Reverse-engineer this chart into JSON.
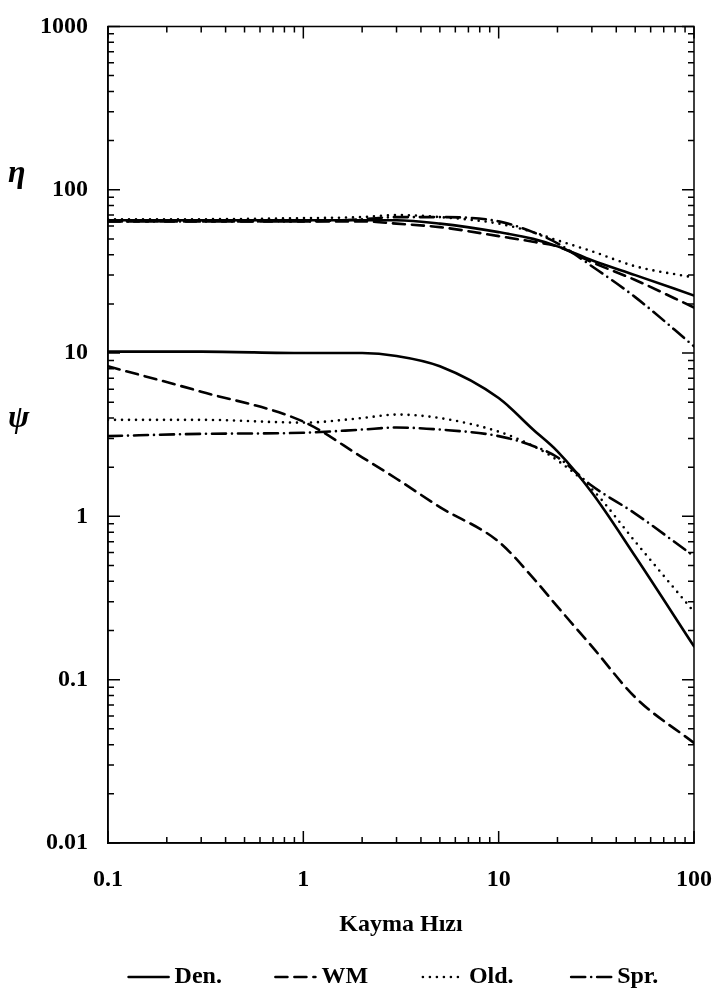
{
  "chart_data": {
    "type": "line",
    "xlabel": "Kayma Hızı",
    "log": "xy",
    "xlim": [
      0.1,
      100
    ],
    "ylim": [
      0.01,
      1000
    ],
    "xticks": [
      0.1,
      {
        "value": 0.2,
        "label": null
      },
      {
        "value": 0.3,
        "label": null
      },
      {
        "value": 0.4,
        "label": null
      },
      {
        "value": 0.5,
        "label": null
      },
      {
        "value": 0.6,
        "label": null
      },
      {
        "value": 0.7,
        "label": null
      },
      {
        "value": 0.8,
        "label": null
      },
      {
        "value": 0.9,
        "label": null
      },
      1,
      {
        "value": 2,
        "label": null
      },
      {
        "value": 3,
        "label": null
      },
      {
        "value": 4,
        "label": null
      },
      {
        "value": 5,
        "label": null
      },
      {
        "value": 6,
        "label": null
      },
      {
        "value": 7,
        "label": null
      },
      {
        "value": 8,
        "label": null
      },
      {
        "value": 9,
        "label": null
      },
      10,
      {
        "value": 20,
        "label": null
      },
      {
        "value": 30,
        "label": null
      },
      {
        "value": 40,
        "label": null
      },
      {
        "value": 50,
        "label": null
      },
      {
        "value": 60,
        "label": null
      },
      {
        "value": 70,
        "label": null
      },
      {
        "value": 80,
        "label": null
      },
      {
        "value": 90,
        "label": null
      },
      100
    ],
    "yticks": [
      0.01,
      {
        "value": 0.02,
        "label": null
      },
      {
        "value": 0.03,
        "label": null
      },
      {
        "value": 0.04,
        "label": null
      },
      {
        "value": 0.05,
        "label": null
      },
      {
        "value": 0.06,
        "label": null
      },
      {
        "value": 0.07,
        "label": null
      },
      {
        "value": 0.08,
        "label": null
      },
      {
        "value": 0.09,
        "label": null
      },
      0.1,
      {
        "value": 0.2,
        "label": null
      },
      {
        "value": 0.3,
        "label": null
      },
      {
        "value": 0.4,
        "label": null
      },
      {
        "value": 0.5,
        "label": null
      },
      {
        "value": 0.6,
        "label": null
      },
      {
        "value": 0.7,
        "label": null
      },
      {
        "value": 0.8,
        "label": null
      },
      {
        "value": 0.9,
        "label": null
      },
      1,
      {
        "value": 2,
        "label": null
      },
      {
        "value": 3,
        "label": null
      },
      {
        "value": 4,
        "label": null
      },
      {
        "value": 5,
        "label": null
      },
      {
        "value": 6,
        "label": null
      },
      {
        "value": 7,
        "label": null
      },
      {
        "value": 8,
        "label": null
      },
      {
        "value": 9,
        "label": null
      },
      10,
      {
        "value": 20,
        "label": null
      },
      {
        "value": 30,
        "label": null
      },
      {
        "value": 40,
        "label": null
      },
      {
        "value": 50,
        "label": null
      },
      {
        "value": 60,
        "label": null
      },
      {
        "value": 70,
        "label": null
      },
      {
        "value": 80,
        "label": null
      },
      {
        "value": 90,
        "label": null
      },
      100,
      {
        "value": 200,
        "label": null
      },
      {
        "value": 300,
        "label": null
      },
      {
        "value": 400,
        "label": null
      },
      {
        "value": 500,
        "label": null
      },
      {
        "value": 600,
        "label": null
      },
      {
        "value": 700,
        "label": null
      },
      {
        "value": 800,
        "label": null
      },
      {
        "value": 900,
        "label": null
      },
      1000
    ],
    "x": [
      0.1,
      0.3,
      1,
      2,
      3,
      5,
      10,
      15,
      20,
      30,
      50,
      100
    ],
    "legend": "bottom",
    "series": [
      {
        "name": "Den.",
        "color": "#000000",
        "line_style": "solid",
        "values": [
          65,
          65,
          65,
          65,
          65,
          62,
          55,
          50,
          45,
          37,
          30,
          22.5
        ]
      },
      {
        "name": "WM",
        "color": "#000000",
        "line_style": "dashed",
        "values": [
          64,
          64,
          64,
          64,
          62,
          59,
          52,
          48,
          45,
          36,
          28,
          19
        ]
      },
      {
        "name": "Old.",
        "color": "#000000",
        "line_style": "dotted",
        "values": [
          66,
          66,
          67,
          68,
          70,
          68,
          62,
          55,
          49,
          42,
          34,
          29
        ]
      },
      {
        "name": "Spr.",
        "color": "#000000",
        "line_style": "dashdot",
        "values": [
          64,
          64,
          64,
          66,
          68,
          68,
          64,
          55,
          47,
          34,
          22,
          11
        ]
      },
      {
        "color": "#000000",
        "line_style": "solid",
        "values": [
          10.2,
          10.2,
          10,
          10,
          9.6,
          8.3,
          5.3,
          3.4,
          2.5,
          1.4,
          0.57,
          0.16
        ]
      },
      {
        "color": "#000000",
        "line_style": "dashed",
        "values": [
          8.3,
          5.8,
          3.8,
          2.3,
          1.7,
          1.14,
          0.7,
          0.42,
          0.28,
          0.16,
          0.078,
          0.041
        ]
      },
      {
        "color": "#000000",
        "line_style": "dotted",
        "values": [
          3.9,
          3.9,
          3.75,
          4,
          4.2,
          4,
          3.3,
          2.7,
          2.2,
          1.47,
          0.7,
          0.26
        ]
      },
      {
        "color": "#000000",
        "line_style": "dashdot",
        "values": [
          3.1,
          3.2,
          3.25,
          3.4,
          3.5,
          3.4,
          3.1,
          2.7,
          2.3,
          1.54,
          1.04,
          0.57
        ]
      }
    ],
    "annotations": [
      "η",
      "ψ"
    ]
  }
}
